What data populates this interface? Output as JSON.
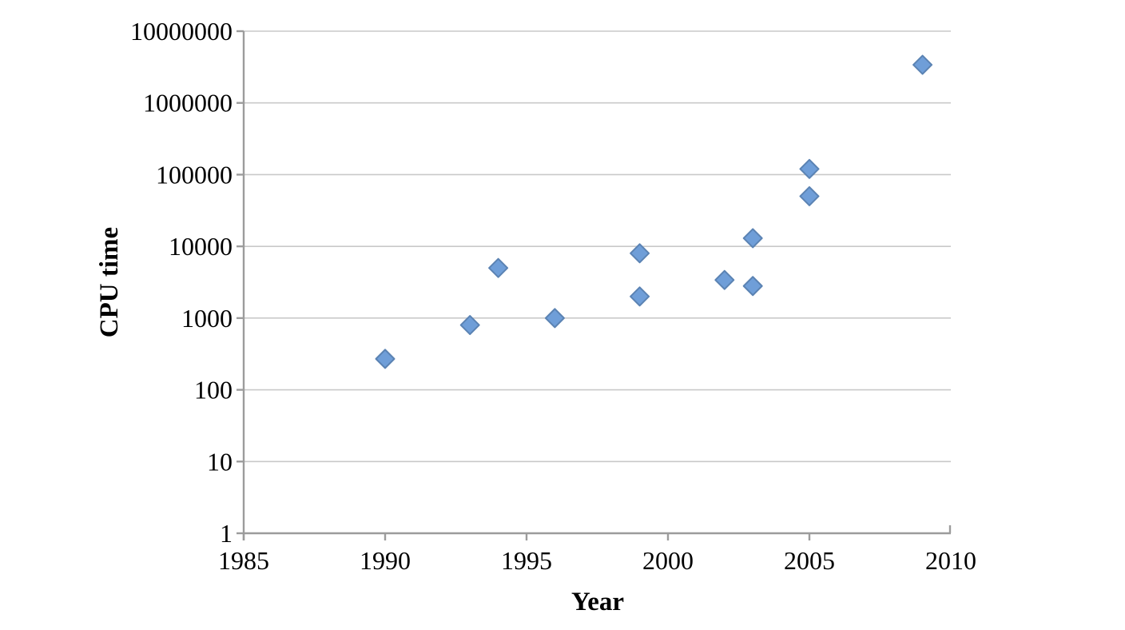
{
  "chart_data": {
    "type": "scatter",
    "title": "",
    "xlabel": "Year",
    "ylabel": "CPU time",
    "x_axis": {
      "scale": "linear",
      "min": 1985,
      "max": 2010,
      "ticks": [
        1985,
        1990,
        1995,
        2000,
        2005,
        2010
      ]
    },
    "y_axis": {
      "scale": "log",
      "min": 1,
      "max": 10000000,
      "ticks": [
        1,
        10,
        100,
        1000,
        10000,
        100000,
        1000000,
        10000000
      ]
    },
    "grid": "horizontal-only",
    "legend": "none",
    "series": [
      {
        "name": "CPU time",
        "marker": "diamond",
        "points": [
          {
            "x": 1990,
            "y": 270
          },
          {
            "x": 1993,
            "y": 800
          },
          {
            "x": 1994,
            "y": 5000
          },
          {
            "x": 1996,
            "y": 1000
          },
          {
            "x": 1999,
            "y": 2000
          },
          {
            "x": 1999,
            "y": 8000
          },
          {
            "x": 2002,
            "y": 3400
          },
          {
            "x": 2003,
            "y": 2800
          },
          {
            "x": 2003,
            "y": 13000
          },
          {
            "x": 2005,
            "y": 50000
          },
          {
            "x": 2005,
            "y": 120000
          },
          {
            "x": 2009,
            "y": 3400000
          }
        ]
      }
    ]
  },
  "style": {
    "marker_fill": "#6F9ED8",
    "marker_stroke": "#5B83B3",
    "gridline_color": "#C9C9C9",
    "axis_color": "#9C9C9C",
    "text_color": "#000000",
    "background": "#FFFFFF"
  }
}
